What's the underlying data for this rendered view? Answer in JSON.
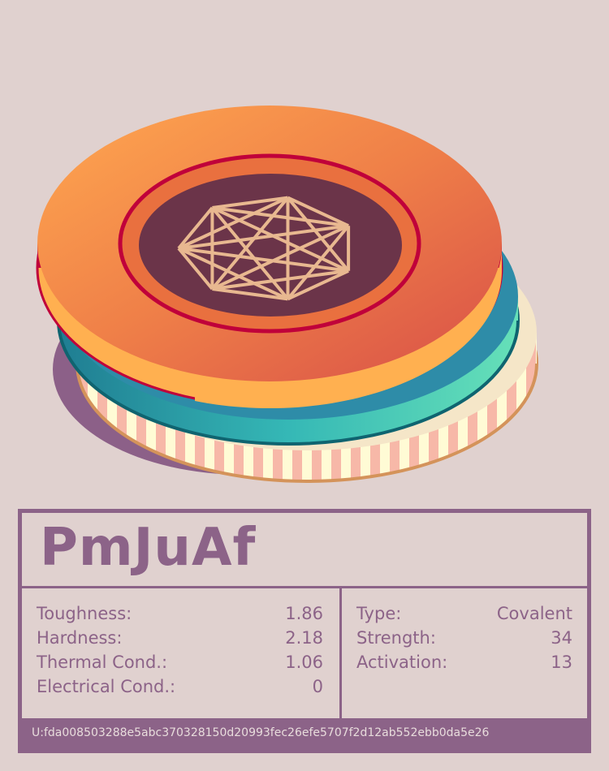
{
  "name": "PmJuAf",
  "properties_left": [
    {
      "label": "Toughness:",
      "value": "1.86"
    },
    {
      "label": "Hardness:",
      "value": "2.18"
    },
    {
      "label": "Thermal Cond.:",
      "value": "1.06"
    },
    {
      "label": "Electrical Cond.:",
      "value": "0"
    }
  ],
  "properties_right": [
    {
      "label": "Type:",
      "value": "Covalent"
    },
    {
      "label": "Strength:",
      "value": "34"
    },
    {
      "label": "Activation:",
      "value": "13"
    }
  ],
  "uid": "U:fda008503288e5abc370328150d20993fec26efe5707f2d12ab552ebb0da5e26",
  "colors": {
    "accent": "#8c6388",
    "background": "#e0d1cf",
    "coin_top": "#f0804a",
    "coin_mid": "#3ab8b0",
    "coin_bottom": "#fff8d0",
    "center": "#6b3449",
    "emblem": "#e8b890"
  },
  "emblem_icon": "heptagon-complete-graph-icon"
}
